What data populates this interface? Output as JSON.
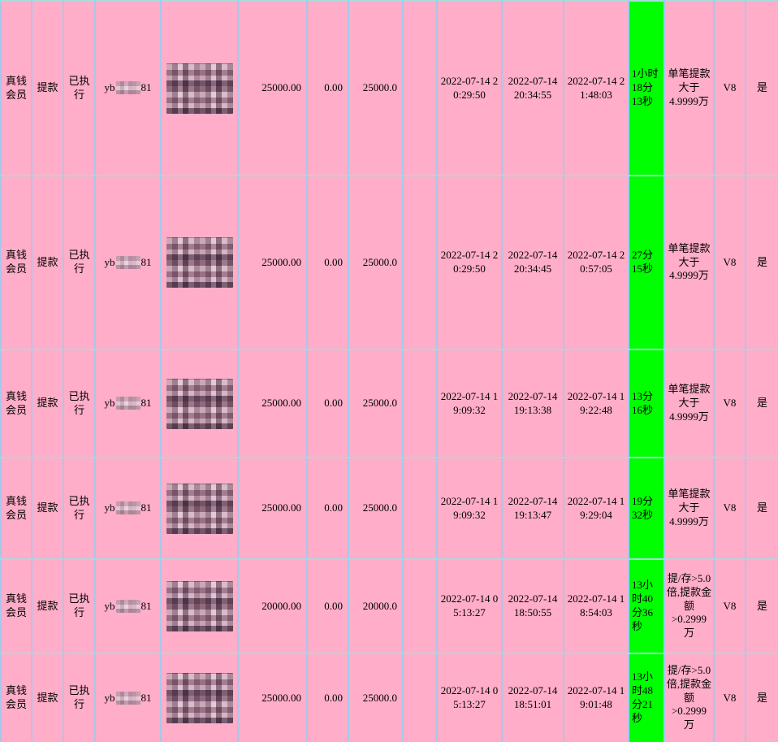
{
  "table": {
    "colors": {
      "row_bg": "#ffadc8",
      "grid_v": "#a6c9ec",
      "grid_h": "#a9dade",
      "highlight": "#00ff00",
      "text": "#000000"
    },
    "rows": [
      {
        "member_type": "真钱会员",
        "txn_type": "提款",
        "status": "已执行",
        "username_prefix": "yb",
        "username_suffix": "81",
        "amount": "25000.00",
        "fee": "0.00",
        "actual": "25000.0",
        "time_applied": "2022-07-14 20:29:50",
        "time_locked": "2022-07-14 20:34:55",
        "time_done": "2022-07-14 21:48:03",
        "duration": "1小时\n18分\n13秒",
        "rule": "单笔提款\n大于\n4.9999万",
        "level": "V8",
        "flag": "是"
      },
      {
        "member_type": "真钱会员",
        "txn_type": "提款",
        "status": "已执行",
        "username_prefix": "yb",
        "username_suffix": "81",
        "amount": "25000.00",
        "fee": "0.00",
        "actual": "25000.0",
        "time_applied": "2022-07-14 20:29:50",
        "time_locked": "2022-07-14 20:34:45",
        "time_done": "2022-07-14 20:57:05",
        "duration": "27分\n15秒",
        "rule": "单笔提款\n大于\n4.9999万",
        "level": "V8",
        "flag": "是"
      },
      {
        "member_type": "真钱会员",
        "txn_type": "提款",
        "status": "已执行",
        "username_prefix": "yb",
        "username_suffix": "81",
        "amount": "25000.00",
        "fee": "0.00",
        "actual": "25000.0",
        "time_applied": "2022-07-14 19:09:32",
        "time_locked": "2022-07-14 19:13:38",
        "time_done": "2022-07-14 19:22:48",
        "duration": "13分\n16秒",
        "rule": "单笔提款\n大于\n4.9999万",
        "level": "V8",
        "flag": "是"
      },
      {
        "member_type": "真钱会员",
        "txn_type": "提款",
        "status": "已执行",
        "username_prefix": "yb",
        "username_suffix": "81",
        "amount": "25000.00",
        "fee": "0.00",
        "actual": "25000.0",
        "time_applied": "2022-07-14 19:09:32",
        "time_locked": "2022-07-14 19:13:47",
        "time_done": "2022-07-14 19:29:04",
        "duration": "19分\n32秒",
        "rule": "单笔提款\n大于\n4.9999万",
        "level": "V8",
        "flag": "是"
      },
      {
        "member_type": "真钱会员",
        "txn_type": "提款",
        "status": "已执行",
        "username_prefix": "yb",
        "username_suffix": "81",
        "amount": "20000.00",
        "fee": "0.00",
        "actual": "20000.0",
        "time_applied": "2022-07-14 05:13:27",
        "time_locked": "2022-07-14 18:50:55",
        "time_done": "2022-07-14 18:54:03",
        "duration": "13小\n时40\n分36\n秒",
        "rule": "提/存>5.0\n倍,提款金\n额\n>0.2999\n万",
        "level": "V8",
        "flag": "是"
      },
      {
        "member_type": "真钱会员",
        "txn_type": "提款",
        "status": "已执行",
        "username_prefix": "yb",
        "username_suffix": "81",
        "amount": "25000.00",
        "fee": "0.00",
        "actual": "25000.0",
        "time_applied": "2022-07-14 05:13:27",
        "time_locked": "2022-07-14 18:51:01",
        "time_done": "2022-07-14 19:01:48",
        "duration": "13小\n时48\n分21\n秒",
        "rule": "提/存>5.0\n倍,提款金\n额\n>0.2999\n万",
        "level": "V8",
        "flag": "是"
      }
    ]
  }
}
